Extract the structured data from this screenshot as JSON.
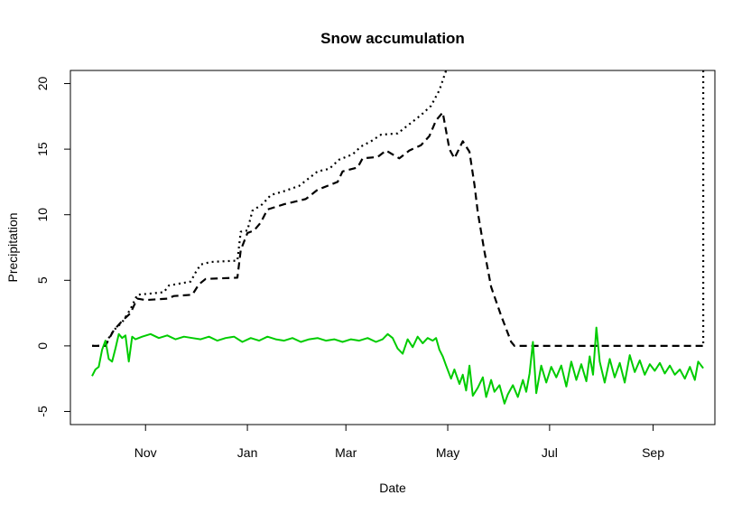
{
  "chart_data": {
    "type": "line",
    "title": "Snow accumulation",
    "xlabel": "Date",
    "ylabel": "Precipitation",
    "xlim": [
      "2013-09-17",
      "2014-10-08"
    ],
    "ylim": [
      -6,
      21
    ],
    "x_ticks": [
      {
        "date": "2013-11-01",
        "label": "Nov"
      },
      {
        "date": "2014-01-01",
        "label": "Jan"
      },
      {
        "date": "2014-03-01",
        "label": "Mar"
      },
      {
        "date": "2014-05-01",
        "label": "May"
      },
      {
        "date": "2014-07-01",
        "label": "Jul"
      },
      {
        "date": "2014-09-01",
        "label": "Sep"
      }
    ],
    "y_ticks": [
      -5,
      0,
      5,
      10,
      15,
      20
    ],
    "grid": false,
    "legend": "none",
    "series": [
      {
        "style": "dotted",
        "color": "#000000",
        "points": [
          [
            "2013-09-30",
            0
          ],
          [
            "2013-10-08",
            0
          ],
          [
            "2013-10-10",
            0.6
          ],
          [
            "2013-10-13",
            1.2
          ],
          [
            "2013-10-18",
            1.8
          ],
          [
            "2013-10-23",
            2.8
          ],
          [
            "2013-10-27",
            3.9
          ],
          [
            "2013-11-05",
            4.0
          ],
          [
            "2013-11-12",
            4.1
          ],
          [
            "2013-11-15",
            4.6
          ],
          [
            "2013-11-28",
            4.9
          ],
          [
            "2013-12-01",
            5.6
          ],
          [
            "2013-12-04",
            6.2
          ],
          [
            "2013-12-10",
            6.4
          ],
          [
            "2013-12-26",
            6.5
          ],
          [
            "2013-12-28",
            8.7
          ],
          [
            "2014-01-01",
            8.8
          ],
          [
            "2014-01-04",
            10.3
          ],
          [
            "2014-01-10",
            10.8
          ],
          [
            "2014-01-15",
            11.5
          ],
          [
            "2014-01-23",
            11.8
          ],
          [
            "2014-02-01",
            12.2
          ],
          [
            "2014-02-06",
            12.7
          ],
          [
            "2014-02-12",
            13.3
          ],
          [
            "2014-02-19",
            13.5
          ],
          [
            "2014-02-25",
            14.2
          ],
          [
            "2014-03-05",
            14.6
          ],
          [
            "2014-03-10",
            15.2
          ],
          [
            "2014-03-16",
            15.6
          ],
          [
            "2014-03-22",
            16.1
          ],
          [
            "2014-04-01",
            16.2
          ],
          [
            "2014-04-08",
            16.9
          ],
          [
            "2014-04-15",
            17.6
          ],
          [
            "2014-04-21",
            18.3
          ],
          [
            "2014-04-26",
            19.5
          ],
          [
            "2014-04-30",
            21
          ]
        ]
      },
      {
        "style": "dotted",
        "color": "#000000",
        "points": [
          [
            "2014-10-01",
            21
          ],
          [
            "2014-10-01",
            0
          ]
        ]
      },
      {
        "style": "dashed",
        "color": "#000000",
        "points": [
          [
            "2013-09-30",
            0
          ],
          [
            "2013-10-08",
            0
          ],
          [
            "2013-10-10",
            0.5
          ],
          [
            "2013-10-13",
            1.2
          ],
          [
            "2013-10-18",
            1.9
          ],
          [
            "2013-10-23",
            2.5
          ],
          [
            "2013-10-27",
            3.6
          ],
          [
            "2013-11-01",
            3.5
          ],
          [
            "2013-11-14",
            3.6
          ],
          [
            "2013-11-18",
            3.8
          ],
          [
            "2013-11-29",
            3.9
          ],
          [
            "2013-12-03",
            4.7
          ],
          [
            "2013-12-07",
            5.1
          ],
          [
            "2013-12-26",
            5.2
          ],
          [
            "2013-12-28",
            7.3
          ],
          [
            "2014-01-01",
            8.6
          ],
          [
            "2014-01-05",
            8.8
          ],
          [
            "2014-01-09",
            9.4
          ],
          [
            "2014-01-13",
            10.4
          ],
          [
            "2014-01-23",
            10.8
          ],
          [
            "2014-02-05",
            11.2
          ],
          [
            "2014-02-12",
            11.9
          ],
          [
            "2014-02-24",
            12.5
          ],
          [
            "2014-02-27",
            13.3
          ],
          [
            "2014-03-08",
            13.6
          ],
          [
            "2014-03-11",
            14.3
          ],
          [
            "2014-03-20",
            14.4
          ],
          [
            "2014-03-25",
            14.9
          ],
          [
            "2014-04-02",
            14.3
          ],
          [
            "2014-04-08",
            14.9
          ],
          [
            "2014-04-15",
            15.3
          ],
          [
            "2014-04-20",
            16.0
          ],
          [
            "2014-04-24",
            17.2
          ],
          [
            "2014-04-28",
            17.8
          ],
          [
            "2014-05-02",
            15.0
          ],
          [
            "2014-05-05",
            14.3
          ],
          [
            "2014-05-10",
            15.6
          ],
          [
            "2014-05-14",
            14.8
          ],
          [
            "2014-05-17",
            12.3
          ],
          [
            "2014-05-19",
            10.2
          ],
          [
            "2014-05-23",
            7.2
          ],
          [
            "2014-05-27",
            4.5
          ],
          [
            "2014-06-02",
            2.3
          ],
          [
            "2014-06-08",
            0.3
          ],
          [
            "2014-06-10",
            0
          ],
          [
            "2014-10-01",
            0
          ]
        ]
      },
      {
        "style": "solid",
        "color": "#00cc00",
        "points": [
          [
            "2013-09-30",
            -2.3
          ],
          [
            "2013-10-02",
            -1.8
          ],
          [
            "2013-10-04",
            -1.6
          ],
          [
            "2013-10-06",
            -0.3
          ],
          [
            "2013-10-08",
            0.4
          ],
          [
            "2013-10-10",
            -1.0
          ],
          [
            "2013-10-12",
            -1.2
          ],
          [
            "2013-10-14",
            -0.2
          ],
          [
            "2013-10-16",
            0.9
          ],
          [
            "2013-10-18",
            0.6
          ],
          [
            "2013-10-20",
            0.8
          ],
          [
            "2013-10-22",
            -1.2
          ],
          [
            "2013-10-24",
            0.7
          ],
          [
            "2013-10-26",
            0.5
          ],
          [
            "2013-10-30",
            0.7
          ],
          [
            "2013-11-04",
            0.9
          ],
          [
            "2013-11-09",
            0.6
          ],
          [
            "2013-11-14",
            0.8
          ],
          [
            "2013-11-19",
            0.5
          ],
          [
            "2013-11-24",
            0.7
          ],
          [
            "2013-11-29",
            0.6
          ],
          [
            "2013-12-04",
            0.5
          ],
          [
            "2013-12-09",
            0.7
          ],
          [
            "2013-12-14",
            0.4
          ],
          [
            "2013-12-19",
            0.6
          ],
          [
            "2013-12-24",
            0.7
          ],
          [
            "2013-12-29",
            0.3
          ],
          [
            "2014-01-03",
            0.6
          ],
          [
            "2014-01-08",
            0.4
          ],
          [
            "2014-01-13",
            0.7
          ],
          [
            "2014-01-18",
            0.5
          ],
          [
            "2014-01-23",
            0.4
          ],
          [
            "2014-01-28",
            0.6
          ],
          [
            "2014-02-02",
            0.3
          ],
          [
            "2014-02-07",
            0.5
          ],
          [
            "2014-02-12",
            0.6
          ],
          [
            "2014-02-17",
            0.4
          ],
          [
            "2014-02-22",
            0.5
          ],
          [
            "2014-02-27",
            0.3
          ],
          [
            "2014-03-04",
            0.5
          ],
          [
            "2014-03-09",
            0.4
          ],
          [
            "2014-03-14",
            0.6
          ],
          [
            "2014-03-19",
            0.3
          ],
          [
            "2014-03-23",
            0.5
          ],
          [
            "2014-03-26",
            0.9
          ],
          [
            "2014-03-29",
            0.6
          ],
          [
            "2014-04-01",
            -0.2
          ],
          [
            "2014-04-04",
            -0.6
          ],
          [
            "2014-04-07",
            0.5
          ],
          [
            "2014-04-10",
            -0.1
          ],
          [
            "2014-04-13",
            0.7
          ],
          [
            "2014-04-16",
            0.2
          ],
          [
            "2014-04-19",
            0.6
          ],
          [
            "2014-04-22",
            0.4
          ],
          [
            "2014-04-24",
            0.6
          ],
          [
            "2014-04-26",
            -0.3
          ],
          [
            "2014-04-28",
            -0.8
          ],
          [
            "2014-04-30",
            -1.5
          ],
          [
            "2014-05-03",
            -2.5
          ],
          [
            "2014-05-05",
            -1.8
          ],
          [
            "2014-05-08",
            -2.9
          ],
          [
            "2014-05-10",
            -2.2
          ],
          [
            "2014-05-12",
            -3.4
          ],
          [
            "2014-05-14",
            -1.5
          ],
          [
            "2014-05-16",
            -3.8
          ],
          [
            "2014-05-19",
            -3.2
          ],
          [
            "2014-05-22",
            -2.4
          ],
          [
            "2014-05-24",
            -3.9
          ],
          [
            "2014-05-27",
            -2.6
          ],
          [
            "2014-05-29",
            -3.5
          ],
          [
            "2014-06-01",
            -3.0
          ],
          [
            "2014-06-04",
            -4.4
          ],
          [
            "2014-06-06",
            -3.7
          ],
          [
            "2014-06-09",
            -3.0
          ],
          [
            "2014-06-12",
            -3.9
          ],
          [
            "2014-06-15",
            -2.6
          ],
          [
            "2014-06-17",
            -3.5
          ],
          [
            "2014-06-19",
            -2.1
          ],
          [
            "2014-06-21",
            0.3
          ],
          [
            "2014-06-23",
            -3.6
          ],
          [
            "2014-06-26",
            -1.5
          ],
          [
            "2014-06-29",
            -2.8
          ],
          [
            "2014-07-02",
            -1.6
          ],
          [
            "2014-07-05",
            -2.4
          ],
          [
            "2014-07-08",
            -1.5
          ],
          [
            "2014-07-11",
            -3.1
          ],
          [
            "2014-07-14",
            -1.2
          ],
          [
            "2014-07-17",
            -2.6
          ],
          [
            "2014-07-20",
            -1.4
          ],
          [
            "2014-07-23",
            -2.7
          ],
          [
            "2014-07-25",
            -0.8
          ],
          [
            "2014-07-27",
            -2.2
          ],
          [
            "2014-07-29",
            1.4
          ],
          [
            "2014-07-31",
            -1.2
          ],
          [
            "2014-08-03",
            -2.8
          ],
          [
            "2014-08-06",
            -1.0
          ],
          [
            "2014-08-09",
            -2.4
          ],
          [
            "2014-08-12",
            -1.3
          ],
          [
            "2014-08-15",
            -2.8
          ],
          [
            "2014-08-18",
            -0.7
          ],
          [
            "2014-08-21",
            -2.0
          ],
          [
            "2014-08-24",
            -1.1
          ],
          [
            "2014-08-27",
            -2.2
          ],
          [
            "2014-08-30",
            -1.4
          ],
          [
            "2014-09-02",
            -1.9
          ],
          [
            "2014-09-05",
            -1.3
          ],
          [
            "2014-09-08",
            -2.1
          ],
          [
            "2014-09-11",
            -1.5
          ],
          [
            "2014-09-14",
            -2.2
          ],
          [
            "2014-09-17",
            -1.8
          ],
          [
            "2014-09-20",
            -2.5
          ],
          [
            "2014-09-23",
            -1.6
          ],
          [
            "2014-09-26",
            -2.6
          ],
          [
            "2014-09-28",
            -1.2
          ],
          [
            "2014-10-01",
            -1.7
          ]
        ]
      }
    ]
  }
}
